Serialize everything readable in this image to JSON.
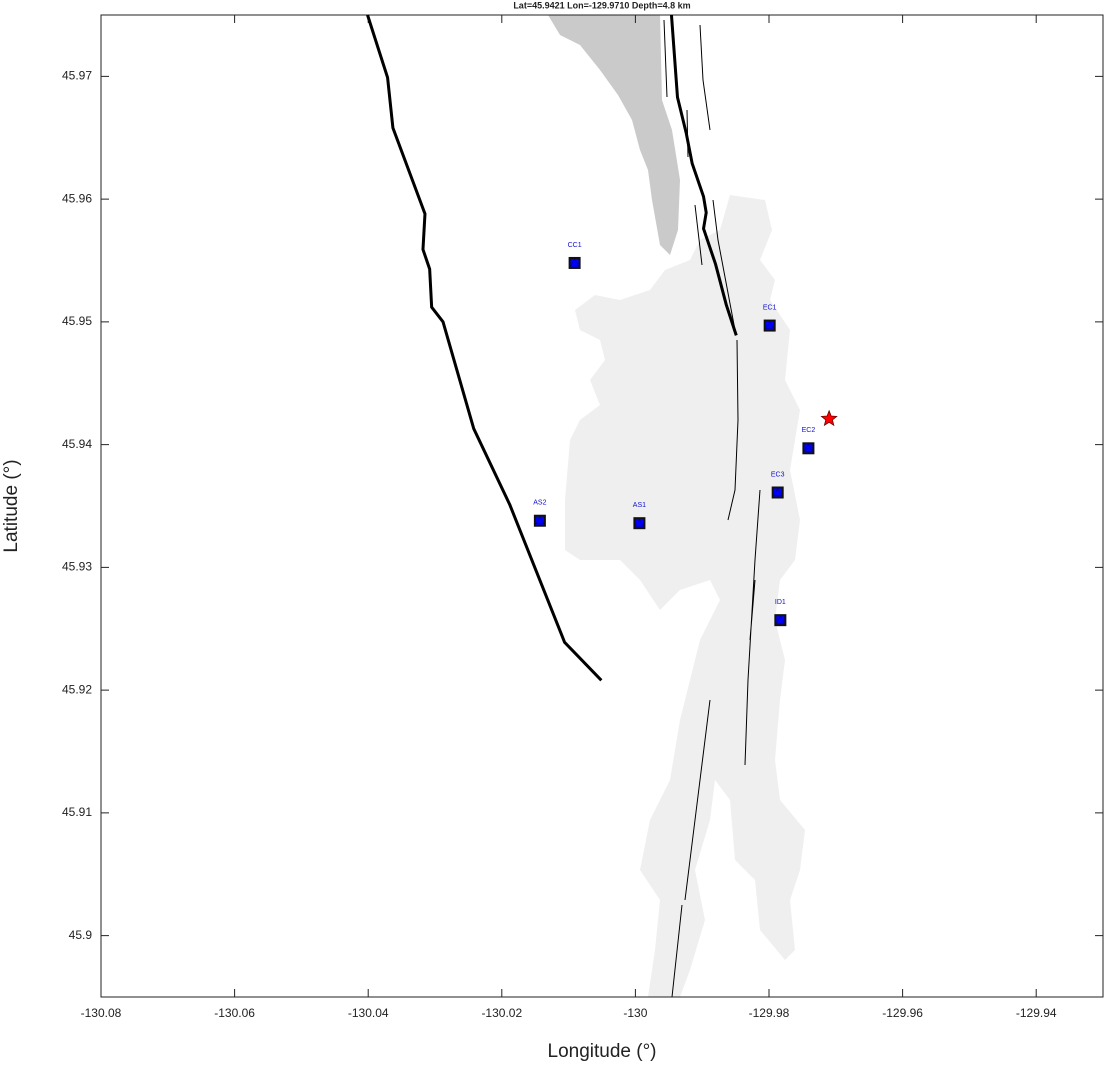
{
  "chart_data": {
    "type": "scatter",
    "title": "Lat=45.9421  Lon=-129.9710  Depth=4.8 km",
    "x_label": "Longitude (°)",
    "y_label": "Latitude (°)",
    "xlim": [
      -130.08,
      -129.93
    ],
    "ylim": [
      45.895,
      45.975
    ],
    "xticks": [
      -130.08,
      -130.06,
      -130.04,
      -130.02,
      -130,
      -129.98,
      -129.96,
      -129.94
    ],
    "yticks": [
      45.9,
      45.91,
      45.92,
      45.93,
      45.94,
      45.95,
      45.96,
      45.97
    ],
    "stations": {
      "color": "#0000ff",
      "labels": [
        "CC1",
        "EC1",
        "EC2",
        "EC3",
        "AS2",
        "AS1",
        "ID1"
      ],
      "x": [
        -130.0091,
        -129.9799,
        -129.9741,
        -129.9787,
        -130.0143,
        -129.9994,
        -129.9783
      ],
      "y": [
        45.9548,
        45.9497,
        45.9397,
        45.9361,
        45.9338,
        45.9336,
        45.9257
      ]
    },
    "event": {
      "color": "#ff0000",
      "x": -129.971,
      "y": 45.9421
    },
    "lines": [
      {
        "color": "#000000",
        "x": [
          -130.0401,
          -130.0371,
          -130.0363,
          -130.0315,
          -130.0318,
          -130.0308,
          -130.0305,
          -130.0288,
          -130.0242,
          -130.0188,
          -130.0106,
          -130.0051
        ],
        "y": [
          45.975,
          45.9699,
          45.9658,
          45.9588,
          45.9559,
          45.9543,
          45.9512,
          45.95,
          45.9413,
          45.9351,
          45.9239,
          45.9208
        ]
      },
      {
        "color": "#000000",
        "x": [
          -129.9946,
          -129.9937,
          -129.9924,
          -129.9915,
          -129.9898,
          -129.9894,
          -129.9898,
          -129.988,
          -129.9864,
          -129.9849
        ],
        "y": [
          45.975,
          45.9683,
          45.9654,
          45.9629,
          45.9602,
          45.9589,
          45.9576,
          45.9547,
          45.9514,
          45.9489
        ]
      }
    ]
  }
}
